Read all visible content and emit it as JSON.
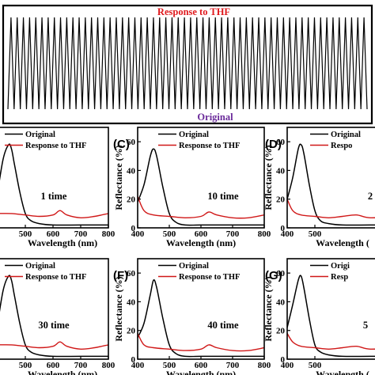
{
  "colors": {
    "original": "#000000",
    "response": "#d01818",
    "top_red": "#e0181c",
    "top_purple": "#6a2a9a"
  },
  "top_panel": {
    "label_top": "Response to THF",
    "label_bottom": "Original",
    "cycles": 58
  },
  "chart_data": [
    {
      "id": "B",
      "type": "line",
      "letter": "",
      "annotation": "1 time",
      "xlabel": "Wavelength (nm)",
      "ylabel": "",
      "xlim": [
        400,
        800
      ],
      "ylim": [
        0,
        70
      ],
      "xticks": [
        "500",
        "600",
        "700",
        "800"
      ],
      "yticks": [],
      "legend": [
        "Original",
        "Response to THF"
      ],
      "series": [
        {
          "name": "Original",
          "x": [
            400,
            420,
            440,
            450,
            460,
            480,
            500,
            520,
            550,
            600,
            700,
            800
          ],
          "y": [
            25,
            48,
            58,
            55,
            45,
            25,
            10,
            5,
            3,
            2,
            2,
            2
          ]
        },
        {
          "name": "Response to THF",
          "x": [
            400,
            450,
            500,
            550,
            600,
            625,
            650,
            700,
            750,
            800
          ],
          "y": [
            10,
            10,
            9,
            8,
            9,
            12,
            9,
            7,
            8,
            10
          ]
        }
      ]
    },
    {
      "id": "C",
      "type": "line",
      "letter": "(C)",
      "annotation": "10 time",
      "xlabel": "Wavelength (nm)",
      "ylabel": "Reflectance (%)",
      "xlim": [
        400,
        800
      ],
      "ylim": [
        0,
        70
      ],
      "xticks": [
        "400",
        "500",
        "600",
        "700",
        "800"
      ],
      "yticks": [
        "0",
        "20",
        "40",
        "60"
      ],
      "legend": [
        "Original",
        "Response to THF"
      ],
      "series": [
        {
          "name": "Original",
          "x": [
            400,
            420,
            440,
            450,
            460,
            480,
            500,
            520,
            550,
            600,
            700,
            800
          ],
          "y": [
            18,
            30,
            50,
            55,
            50,
            28,
            10,
            4,
            2,
            2,
            2,
            2
          ]
        },
        {
          "name": "Response to THF",
          "x": [
            400,
            420,
            450,
            500,
            550,
            600,
            625,
            650,
            700,
            750,
            800
          ],
          "y": [
            22,
            12,
            9,
            8,
            7,
            8,
            11,
            9,
            7,
            7,
            9
          ]
        }
      ]
    },
    {
      "id": "D",
      "type": "line",
      "letter": "(D)",
      "annotation": "2",
      "xlabel": "Wavelength (",
      "ylabel": "Reflectance (%)",
      "xlim": [
        400,
        800
      ],
      "ylim": [
        0,
        70
      ],
      "xticks": [
        "400",
        "500"
      ],
      "yticks": [
        "0",
        "20",
        "40",
        "60"
      ],
      "legend": [
        "Original",
        "Respo"
      ],
      "series": [
        {
          "name": "Original",
          "x": [
            400,
            420,
            440,
            450,
            460,
            480,
            500,
            520,
            550,
            600,
            700,
            800
          ],
          "y": [
            20,
            35,
            55,
            58,
            52,
            30,
            12,
            5,
            3,
            2,
            2,
            2
          ]
        },
        {
          "name": "Respo",
          "x": [
            400,
            420,
            450,
            500,
            550,
            600,
            650,
            700,
            800
          ],
          "y": [
            20,
            12,
            9,
            8,
            7,
            8,
            9,
            7,
            8
          ]
        }
      ]
    },
    {
      "id": "E",
      "type": "line",
      "letter": "",
      "annotation": "30 time",
      "xlabel": "Wavelength (nm)",
      "ylabel": "",
      "xlim": [
        400,
        800
      ],
      "ylim": [
        0,
        70
      ],
      "xticks": [
        "500",
        "600",
        "700",
        "800"
      ],
      "yticks": [],
      "legend": [
        "Original",
        "Response to THF"
      ],
      "series": [
        {
          "name": "Original",
          "x": [
            400,
            420,
            440,
            450,
            460,
            480,
            500,
            520,
            550,
            600,
            700,
            800
          ],
          "y": [
            25,
            48,
            58,
            55,
            45,
            25,
            10,
            5,
            3,
            2,
            2,
            2
          ]
        },
        {
          "name": "Response to THF",
          "x": [
            400,
            450,
            500,
            550,
            600,
            625,
            650,
            700,
            750,
            800
          ],
          "y": [
            10,
            10,
            9,
            8,
            9,
            12,
            9,
            7,
            8,
            10
          ]
        }
      ]
    },
    {
      "id": "F",
      "type": "line",
      "letter": "(F)",
      "annotation": "40 time",
      "xlabel": "Wavelength (nm)",
      "ylabel": "Reflectance (%)",
      "xlim": [
        400,
        800
      ],
      "ylim": [
        0,
        70
      ],
      "xticks": [
        "400",
        "500",
        "600",
        "700",
        "800"
      ],
      "yticks": [
        "0",
        "20",
        "40",
        "60"
      ],
      "legend": [
        "Original",
        "Response to THF"
      ],
      "series": [
        {
          "name": "Original",
          "x": [
            400,
            420,
            440,
            450,
            460,
            480,
            500,
            520,
            550,
            600,
            700,
            800
          ],
          "y": [
            15,
            25,
            45,
            55,
            50,
            28,
            10,
            4,
            2,
            2,
            2,
            2
          ]
        },
        {
          "name": "Response to THF",
          "x": [
            400,
            420,
            450,
            500,
            550,
            600,
            625,
            650,
            700,
            750,
            800
          ],
          "y": [
            18,
            10,
            8,
            7,
            6,
            7,
            10,
            8,
            6,
            6,
            8
          ]
        }
      ]
    },
    {
      "id": "G",
      "type": "line",
      "letter": "(G)",
      "annotation": "5",
      "xlabel": "Wavelength (",
      "ylabel": "Reflectance (%)",
      "xlim": [
        400,
        800
      ],
      "ylim": [
        0,
        70
      ],
      "xticks": [
        "400",
        "500"
      ],
      "yticks": [
        "0",
        "20",
        "40",
        "60"
      ],
      "legend": [
        "Origi",
        "Resp"
      ],
      "series": [
        {
          "name": "Origi",
          "x": [
            400,
            420,
            440,
            450,
            460,
            480,
            500,
            520,
            550,
            600,
            700,
            800
          ],
          "y": [
            22,
            38,
            55,
            58,
            50,
            28,
            10,
            5,
            3,
            2,
            2,
            2
          ]
        },
        {
          "name": "Resp",
          "x": [
            400,
            420,
            450,
            500,
            550,
            600,
            650,
            700,
            800
          ],
          "y": [
            18,
            12,
            9,
            8,
            7,
            8,
            9,
            7,
            8
          ]
        }
      ]
    }
  ]
}
